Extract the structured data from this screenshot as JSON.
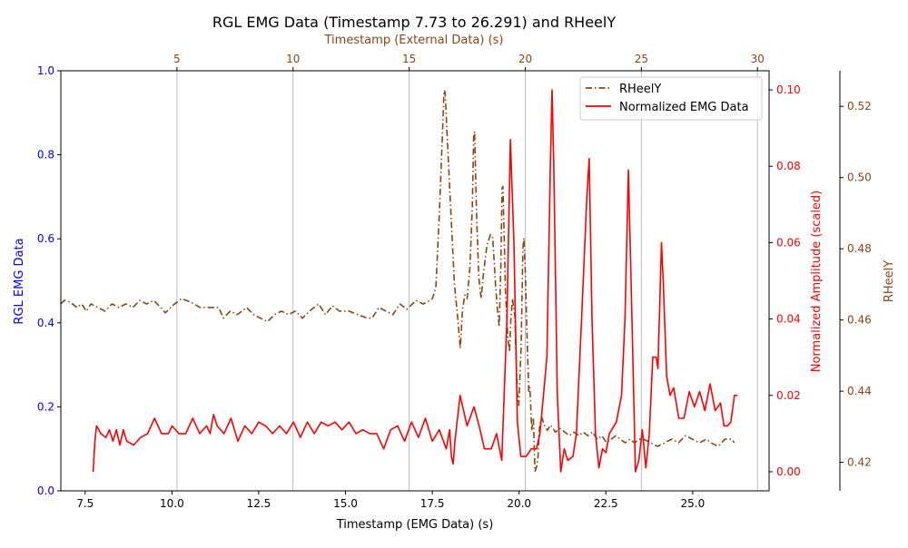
{
  "chart_data": {
    "type": "line",
    "title": "RGL EMG Data (Timestamp 7.73 to 26.291) and RHeelY",
    "axes": {
      "bottom": {
        "label": "Timestamp (EMG Data) (s)",
        "range": [
          6.8,
          27.2
        ],
        "ticks": [
          7.5,
          10.0,
          12.5,
          15.0,
          17.5,
          20.0,
          22.5,
          25.0
        ],
        "tick_labels": [
          "7.5",
          "10.0",
          "12.5",
          "15.0",
          "17.5",
          "20.0",
          "22.5",
          "25.0"
        ]
      },
      "top": {
        "label": "Timestamp (External Data) (s)",
        "range": [
          0.0,
          30.5
        ],
        "ticks": [
          5,
          10,
          15,
          20,
          25,
          30
        ],
        "tick_labels": [
          "5",
          "10",
          "15",
          "20",
          "25",
          "30"
        ],
        "color": "#8b4513",
        "grid": true
      },
      "left": {
        "label": "RGL EMG Data",
        "range": [
          0.0,
          1.0
        ],
        "ticks": [
          0.0,
          0.2,
          0.4,
          0.6,
          0.8,
          1.0
        ],
        "tick_labels": [
          "0.0",
          "0.2",
          "0.4",
          "0.6",
          "0.8",
          "1.0"
        ],
        "color": "#0000ff"
      },
      "right_inner": {
        "label": "Normalized Amplitude (scaled)",
        "range": [
          -0.005,
          0.105
        ],
        "ticks": [
          0.0,
          0.02,
          0.04,
          0.06,
          0.08,
          0.1
        ],
        "tick_labels": [
          "0.00",
          "0.02",
          "0.04",
          "0.06",
          "0.08",
          "0.10"
        ],
        "color": "#ff0000"
      },
      "right_outer": {
        "label": "RHeelY",
        "range": [
          0.412,
          0.53
        ],
        "ticks": [
          0.42,
          0.44,
          0.46,
          0.48,
          0.5,
          0.52
        ],
        "tick_labels": [
          "0.42",
          "0.44",
          "0.46",
          "0.48",
          "0.50",
          "0.52"
        ],
        "color": "#8b4513"
      }
    },
    "legend": {
      "placement": "top-right",
      "entries": [
        "RHeelY",
        "Normalized EMG Data"
      ]
    },
    "series": [
      {
        "name": "RHeelY",
        "color": "#8b4513",
        "style": "dash-dot",
        "axis_x": "top",
        "axis_y": "right_outer",
        "points": [
          [
            0.0,
            0.4645
          ],
          [
            0.15,
            0.4655
          ],
          [
            0.4,
            0.465
          ],
          [
            0.7,
            0.4635
          ],
          [
            0.9,
            0.4645
          ],
          [
            1.1,
            0.4625
          ],
          [
            1.3,
            0.4645
          ],
          [
            1.6,
            0.4635
          ],
          [
            1.9,
            0.4625
          ],
          [
            2.2,
            0.4645
          ],
          [
            2.5,
            0.4635
          ],
          [
            2.8,
            0.4645
          ],
          [
            3.1,
            0.4635
          ],
          [
            3.4,
            0.4655
          ],
          [
            3.7,
            0.4645
          ],
          [
            4.0,
            0.4655
          ],
          [
            4.3,
            0.4635
          ],
          [
            4.5,
            0.462
          ],
          [
            4.8,
            0.464
          ],
          [
            5.2,
            0.466
          ],
          [
            5.6,
            0.465
          ],
          [
            6.0,
            0.4635
          ],
          [
            6.4,
            0.4635
          ],
          [
            6.8,
            0.4635
          ],
          [
            7.0,
            0.4605
          ],
          [
            7.3,
            0.4625
          ],
          [
            7.6,
            0.4615
          ],
          [
            8.0,
            0.4635
          ],
          [
            8.3,
            0.4615
          ],
          [
            8.6,
            0.4605
          ],
          [
            8.9,
            0.4595
          ],
          [
            9.2,
            0.4615
          ],
          [
            9.5,
            0.4625
          ],
          [
            9.8,
            0.4615
          ],
          [
            10.1,
            0.4625
          ],
          [
            10.4,
            0.4605
          ],
          [
            10.8,
            0.463
          ],
          [
            11.1,
            0.4645
          ],
          [
            11.4,
            0.4615
          ],
          [
            11.7,
            0.464
          ],
          [
            12.0,
            0.4625
          ],
          [
            12.4,
            0.4625
          ],
          [
            12.8,
            0.4615
          ],
          [
            13.2,
            0.4605
          ],
          [
            13.4,
            0.4605
          ],
          [
            13.7,
            0.4635
          ],
          [
            14.0,
            0.4625
          ],
          [
            14.3,
            0.4615
          ],
          [
            14.6,
            0.4645
          ],
          [
            14.9,
            0.463
          ],
          [
            15.3,
            0.4655
          ],
          [
            15.6,
            0.4645
          ],
          [
            15.9,
            0.4655
          ],
          [
            16.0,
            0.466
          ],
          [
            16.15,
            0.469
          ],
          [
            16.3,
            0.49
          ],
          [
            16.45,
            0.515
          ],
          [
            16.5,
            0.5245
          ],
          [
            16.55,
            0.524
          ],
          [
            16.65,
            0.51
          ],
          [
            16.8,
            0.49
          ],
          [
            16.95,
            0.47
          ],
          [
            17.1,
            0.46
          ],
          [
            17.2,
            0.452
          ],
          [
            17.3,
            0.463
          ],
          [
            17.4,
            0.467
          ],
          [
            17.5,
            0.466
          ],
          [
            17.62,
            0.475
          ],
          [
            17.72,
            0.492
          ],
          [
            17.78,
            0.512
          ],
          [
            17.82,
            0.513
          ],
          [
            17.9,
            0.49
          ],
          [
            18.0,
            0.472
          ],
          [
            18.1,
            0.466
          ],
          [
            18.2,
            0.473
          ],
          [
            18.35,
            0.481
          ],
          [
            18.5,
            0.484
          ],
          [
            18.6,
            0.483
          ],
          [
            18.72,
            0.47
          ],
          [
            18.8,
            0.463
          ],
          [
            18.88,
            0.458
          ],
          [
            18.95,
            0.475
          ],
          [
            19.0,
            0.497
          ],
          [
            19.04,
            0.4975
          ],
          [
            19.08,
            0.487
          ],
          [
            19.15,
            0.468
          ],
          [
            19.25,
            0.455
          ],
          [
            19.32,
            0.451
          ],
          [
            19.38,
            0.46
          ],
          [
            19.45,
            0.466
          ],
          [
            19.55,
            0.461
          ],
          [
            19.65,
            0.44
          ],
          [
            19.72,
            0.436
          ],
          [
            19.82,
            0.452
          ],
          [
            19.9,
            0.48
          ],
          [
            19.94,
            0.483
          ],
          [
            20.0,
            0.474
          ],
          [
            20.08,
            0.455
          ],
          [
            20.15,
            0.44
          ],
          [
            20.2,
            0.441
          ],
          [
            20.28,
            0.429
          ],
          [
            20.35,
            0.4325
          ],
          [
            20.42,
            0.4175
          ],
          [
            20.5,
            0.419
          ],
          [
            20.55,
            0.4215
          ],
          [
            20.62,
            0.4305
          ],
          [
            20.72,
            0.4325
          ],
          [
            20.82,
            0.4305
          ],
          [
            20.95,
            0.429
          ],
          [
            21.1,
            0.4305
          ],
          [
            21.3,
            0.4285
          ],
          [
            21.5,
            0.4295
          ],
          [
            21.7,
            0.4285
          ],
          [
            21.9,
            0.4275
          ],
          [
            22.1,
            0.4285
          ],
          [
            22.3,
            0.4275
          ],
          [
            22.5,
            0.4285
          ],
          [
            22.7,
            0.4275
          ],
          [
            22.9,
            0.4285
          ],
          [
            23.1,
            0.4265
          ],
          [
            23.3,
            0.4275
          ],
          [
            23.5,
            0.4255
          ],
          [
            23.7,
            0.4265
          ],
          [
            23.9,
            0.4275
          ],
          [
            24.1,
            0.4265
          ],
          [
            24.3,
            0.4255
          ],
          [
            24.5,
            0.4265
          ],
          [
            24.7,
            0.4255
          ],
          [
            24.9,
            0.4265
          ],
          [
            25.1,
            0.4265
          ],
          [
            25.4,
            0.4255
          ],
          [
            25.7,
            0.4245
          ],
          [
            26.0,
            0.4255
          ],
          [
            26.3,
            0.4265
          ],
          [
            26.6,
            0.4255
          ],
          [
            26.9,
            0.4275
          ],
          [
            27.2,
            0.4265
          ],
          [
            27.5,
            0.4255
          ],
          [
            27.8,
            0.4265
          ],
          [
            28.0,
            0.4255
          ],
          [
            28.3,
            0.4245
          ],
          [
            28.6,
            0.4265
          ],
          [
            28.9,
            0.4265
          ],
          [
            29.0,
            0.4255
          ]
        ]
      },
      {
        "name": "Normalized EMG Data",
        "color": "#ff0000",
        "style": "solid",
        "axis_x": "bottom",
        "axis_y": "right_inner",
        "points": [
          [
            7.73,
            0.0
          ],
          [
            7.78,
            0.008
          ],
          [
            7.83,
            0.012
          ],
          [
            7.95,
            0.01
          ],
          [
            8.1,
            0.009
          ],
          [
            8.2,
            0.011
          ],
          [
            8.3,
            0.008
          ],
          [
            8.4,
            0.011
          ],
          [
            8.5,
            0.007
          ],
          [
            8.6,
            0.011
          ],
          [
            8.7,
            0.008
          ],
          [
            8.9,
            0.007
          ],
          [
            9.1,
            0.009
          ],
          [
            9.3,
            0.01
          ],
          [
            9.5,
            0.014
          ],
          [
            9.7,
            0.01
          ],
          [
            9.9,
            0.01
          ],
          [
            10.0,
            0.012
          ],
          [
            10.2,
            0.01
          ],
          [
            10.4,
            0.01
          ],
          [
            10.6,
            0.014
          ],
          [
            10.8,
            0.01
          ],
          [
            11.0,
            0.012
          ],
          [
            11.1,
            0.01
          ],
          [
            11.2,
            0.015
          ],
          [
            11.3,
            0.012
          ],
          [
            11.5,
            0.01
          ],
          [
            11.7,
            0.014
          ],
          [
            11.9,
            0.008
          ],
          [
            12.1,
            0.012
          ],
          [
            12.3,
            0.01
          ],
          [
            12.5,
            0.013
          ],
          [
            12.7,
            0.012
          ],
          [
            12.9,
            0.01
          ],
          [
            13.1,
            0.012
          ],
          [
            13.3,
            0.01
          ],
          [
            13.5,
            0.013
          ],
          [
            13.7,
            0.009
          ],
          [
            13.9,
            0.013
          ],
          [
            14.1,
            0.01
          ],
          [
            14.3,
            0.013
          ],
          [
            14.5,
            0.012
          ],
          [
            14.7,
            0.013
          ],
          [
            14.9,
            0.011
          ],
          [
            15.1,
            0.013
          ],
          [
            15.3,
            0.01
          ],
          [
            15.5,
            0.011
          ],
          [
            15.7,
            0.01
          ],
          [
            15.9,
            0.01
          ],
          [
            16.1,
            0.006
          ],
          [
            16.3,
            0.011
          ],
          [
            16.5,
            0.012
          ],
          [
            16.7,
            0.008
          ],
          [
            16.9,
            0.013
          ],
          [
            17.1,
            0.009
          ],
          [
            17.3,
            0.014
          ],
          [
            17.5,
            0.008
          ],
          [
            17.7,
            0.011
          ],
          [
            17.9,
            0.006
          ],
          [
            18.0,
            0.011
          ],
          [
            18.05,
            0.004
          ],
          [
            18.1,
            0.002
          ],
          [
            18.15,
            0.008
          ],
          [
            18.3,
            0.02
          ],
          [
            18.5,
            0.012
          ],
          [
            18.7,
            0.017
          ],
          [
            18.85,
            0.012
          ],
          [
            19.0,
            0.006
          ],
          [
            19.2,
            0.006
          ],
          [
            19.35,
            0.01
          ],
          [
            19.5,
            0.003
          ],
          [
            19.65,
            0.04
          ],
          [
            19.75,
            0.087
          ],
          [
            19.85,
            0.06
          ],
          [
            19.95,
            0.013
          ],
          [
            20.05,
            0.004
          ],
          [
            20.2,
            0.004
          ],
          [
            20.35,
            0.006
          ],
          [
            20.5,
            0.006
          ],
          [
            20.6,
            0.01
          ],
          [
            20.7,
            0.02
          ],
          [
            20.8,
            0.03
          ],
          [
            20.9,
            0.08
          ],
          [
            20.95,
            0.1
          ],
          [
            21.0,
            0.08
          ],
          [
            21.1,
            0.02
          ],
          [
            21.2,
            0.0
          ],
          [
            21.3,
            0.006
          ],
          [
            21.4,
            0.003
          ],
          [
            21.55,
            0.004
          ],
          [
            21.65,
            0.01
          ],
          [
            21.8,
            0.04
          ],
          [
            21.95,
            0.072
          ],
          [
            22.02,
            0.082
          ],
          [
            22.1,
            0.04
          ],
          [
            22.2,
            0.01
          ],
          [
            22.3,
            0.001
          ],
          [
            22.4,
            0.006
          ],
          [
            22.5,
            0.005
          ],
          [
            22.6,
            0.01
          ],
          [
            22.8,
            0.013
          ],
          [
            22.95,
            0.02
          ],
          [
            23.05,
            0.04
          ],
          [
            23.15,
            0.079
          ],
          [
            23.25,
            0.04
          ],
          [
            23.35,
            0.0
          ],
          [
            23.45,
            0.003
          ],
          [
            23.55,
            0.011
          ],
          [
            23.65,
            0.001
          ],
          [
            23.75,
            0.01
          ],
          [
            23.85,
            0.03
          ],
          [
            23.95,
            0.03
          ],
          [
            24.0,
            0.027
          ],
          [
            24.1,
            0.06
          ],
          [
            24.15,
            0.05
          ],
          [
            24.25,
            0.025
          ],
          [
            24.35,
            0.02
          ],
          [
            24.45,
            0.022
          ],
          [
            24.6,
            0.014
          ],
          [
            24.75,
            0.014
          ],
          [
            24.9,
            0.021
          ],
          [
            25.05,
            0.017
          ],
          [
            25.2,
            0.021
          ],
          [
            25.35,
            0.016
          ],
          [
            25.5,
            0.023
          ],
          [
            25.65,
            0.016
          ],
          [
            25.8,
            0.018
          ],
          [
            25.9,
            0.012
          ],
          [
            26.0,
            0.012
          ],
          [
            26.1,
            0.013
          ],
          [
            26.2,
            0.02
          ],
          [
            26.291,
            0.02
          ]
        ]
      }
    ]
  }
}
